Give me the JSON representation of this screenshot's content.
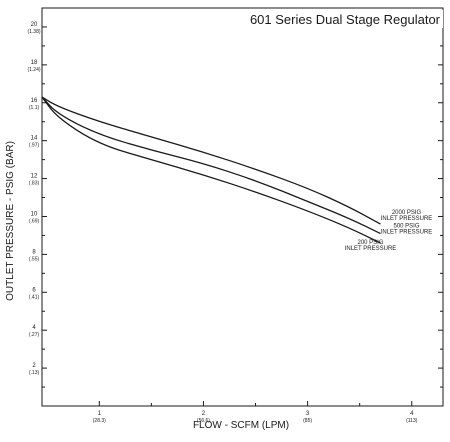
{
  "chart_data": {
    "type": "line",
    "title": "601 Series Dual Stage Regulator",
    "title_color": "#b0283b",
    "xlabel": "FLOW - SCFM (LPM)",
    "ylabel": "OUTLET PRESSURE - PSIG (BAR)",
    "xlim": [
      0.45,
      4.3
    ],
    "ylim": [
      0,
      21
    ],
    "grid": false,
    "x_ticks": [
      {
        "value": 1,
        "label": "1",
        "sub": "(28.3)"
      },
      {
        "value": 2,
        "label": "2",
        "sub": "(56.6)"
      },
      {
        "value": 3,
        "label": "3",
        "sub": "(85)"
      },
      {
        "value": 4,
        "label": "4",
        "sub": "(113)"
      }
    ],
    "y_ticks": [
      {
        "value": 2,
        "label": "2",
        "sub": "(.13)"
      },
      {
        "value": 4,
        "label": "4",
        "sub": "(.27)"
      },
      {
        "value": 6,
        "label": "6",
        "sub": "(.41)"
      },
      {
        "value": 8,
        "label": "8",
        "sub": "(.55)"
      },
      {
        "value": 10,
        "label": "10",
        "sub": "(.69)"
      },
      {
        "value": 12,
        "label": "12",
        "sub": "(.83)"
      },
      {
        "value": 14,
        "label": "14",
        "sub": "(.97)"
      },
      {
        "value": 16,
        "label": "16",
        "sub": "(1.1)"
      },
      {
        "value": 18,
        "label": "18",
        "sub": "(1.24)"
      },
      {
        "value": 20,
        "label": "20",
        "sub": "(1.38)"
      }
    ],
    "series": [
      {
        "name": "2000 PSIG INLET PRESSURE",
        "label_lines": [
          "2000 PSIG",
          "INLET PRESSURE"
        ],
        "x": [
          0.45,
          0.6,
          1.0,
          1.5,
          2.0,
          2.5,
          3.0,
          3.4,
          3.7
        ],
        "y": [
          16.3,
          15.8,
          15.0,
          14.2,
          13.4,
          12.5,
          11.5,
          10.5,
          9.6
        ]
      },
      {
        "name": "500 PSIG INLET PRESSURE",
        "label_lines": [
          "500 PSIG",
          "INLET PRESSURE"
        ],
        "x": [
          0.45,
          0.6,
          1.0,
          1.5,
          2.0,
          2.5,
          3.0,
          3.4,
          3.7
        ],
        "y": [
          16.3,
          15.4,
          14.3,
          13.5,
          12.8,
          11.9,
          10.8,
          9.9,
          9.1
        ]
      },
      {
        "name": "200 PSIG INLET PRESSURE",
        "label_lines": [
          "200 PSIG",
          "INLET PRESSURE"
        ],
        "x": [
          0.45,
          0.6,
          1.0,
          1.5,
          2.0,
          2.5,
          3.0,
          3.4,
          3.7
        ],
        "y": [
          16.3,
          15.2,
          13.8,
          13.0,
          12.2,
          11.3,
          10.3,
          9.4,
          8.6
        ]
      }
    ],
    "line_color": "#1a1a1a"
  }
}
